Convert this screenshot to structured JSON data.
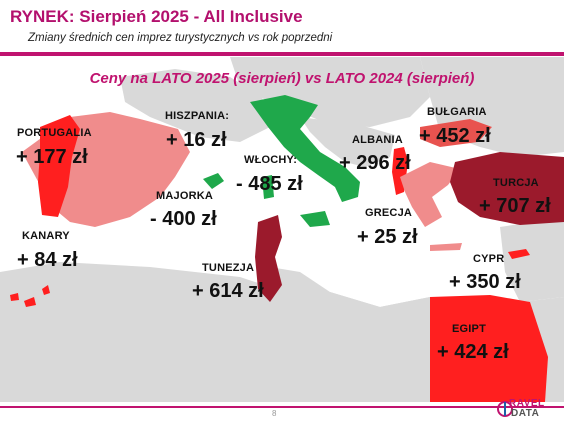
{
  "header": {
    "title": "RYNEK: Sierpień 2025 - All Inclusive",
    "subtitle": "Zmiany średnich cen imprez turystycznych vs rok poprzedni"
  },
  "map": {
    "heading": "Ceny na LATO 2025 (sierpień) vs  LATO 2024 (sierpień)",
    "countries": [
      {
        "label": "PORTUGALIA",
        "value": "+ 177 zł"
      },
      {
        "label": "HISZPANIA:",
        "value": "+ 16 zł"
      },
      {
        "label": "WŁOCHY:",
        "value": "- 485 zł"
      },
      {
        "label": "ALBANIA",
        "value": "+ 296 zł"
      },
      {
        "label": "BUŁGARIA",
        "value": "+ 452 zł"
      },
      {
        "label": "MAJORKA",
        "value": "- 400 zł"
      },
      {
        "label": "TURCJA",
        "value": "+ 707 zł"
      },
      {
        "label": "KANARY",
        "value": "+ 84 zł"
      },
      {
        "label": "GRECJA",
        "value": "+ 25 zł"
      },
      {
        "label": "TUNEZJA",
        "value": "+ 614 zł"
      },
      {
        "label": "CYPR",
        "value": "+ 350 zł"
      },
      {
        "label": "EGIPT",
        "value": "+ 424 zł"
      }
    ],
    "colors": {
      "sea": "#ffffff",
      "land": "#d9d9d9",
      "increase_light": "#f08c8c",
      "increase_mid": "#e8534f",
      "increase_strong": "#ff1f1f",
      "increase_dark": "#9b1a2c",
      "decrease": "#1fa84b"
    }
  },
  "footer": {
    "page_number": "8",
    "logo_top": "RAVEL",
    "logo_bottom": "DATA"
  }
}
